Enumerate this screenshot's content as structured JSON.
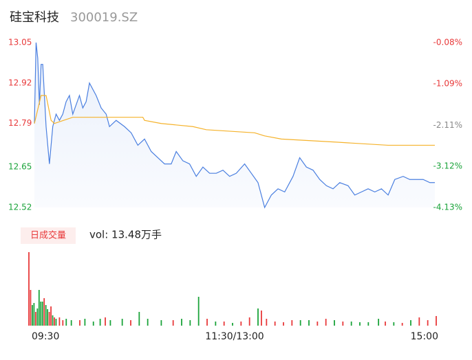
{
  "header": {
    "name": "硅宝科技",
    "code": "300019.SZ"
  },
  "volume_badge": "日成交量",
  "volume_text": "vol: 13.48万手",
  "chart_data": [
    {
      "type": "line",
      "xlim": [
        0,
        240
      ],
      "xticks": [
        {
          "value": 0,
          "label": "09:30"
        },
        {
          "value": 120,
          "label": "11:30/13:00"
        },
        {
          "value": 240,
          "label": "15:00"
        }
      ],
      "ylim": [
        12.52,
        13.05
      ],
      "yticks": [
        13.05,
        12.92,
        12.79,
        12.65,
        12.52
      ],
      "ytick_colors": [
        "#e8393a",
        "#e8393a",
        "#e8393a",
        "#1aa33a",
        "#1aa33a"
      ],
      "y2lim": [
        -4.13,
        -0.08
      ],
      "y2ticks": [
        {
          "value": -0.08,
          "label": "-0.08%"
        },
        {
          "value": -1.09,
          "label": "-1.09%"
        },
        {
          "value": -2.11,
          "label": "-2.11%"
        },
        {
          "value": -3.12,
          "label": "-3.12%"
        },
        {
          "value": -4.13,
          "label": "-4.13%"
        }
      ],
      "y2tick_colors": [
        "#e8393a",
        "#e8393a",
        "#888888",
        "#1aa33a",
        "#1aa33a"
      ],
      "series": [
        {
          "color": "#4a7fe0",
          "x": [
            0,
            1,
            2,
            3,
            4,
            5,
            7,
            9,
            11,
            13,
            15,
            17,
            19,
            21,
            23,
            25,
            27,
            29,
            31,
            33,
            37,
            40,
            43,
            45,
            49,
            54,
            58,
            62,
            66,
            70,
            74,
            78,
            82,
            85,
            89,
            93,
            97,
            101,
            105,
            109,
            113,
            117,
            121,
            126,
            130,
            134,
            138,
            142,
            146,
            150,
            155,
            159,
            163,
            167,
            171,
            175,
            179,
            183,
            188,
            192,
            196,
            200,
            204,
            208,
            212,
            216,
            221,
            225,
            229,
            233,
            237,
            240
          ],
          "values": [
            12.79,
            13.05,
            13.0,
            12.85,
            12.98,
            12.98,
            12.78,
            12.66,
            12.78,
            12.82,
            12.8,
            12.82,
            12.86,
            12.88,
            12.82,
            12.85,
            12.88,
            12.84,
            12.86,
            12.92,
            12.88,
            12.84,
            12.82,
            12.78,
            12.8,
            12.78,
            12.76,
            12.72,
            12.74,
            12.7,
            12.68,
            12.66,
            12.66,
            12.7,
            12.67,
            12.66,
            12.62,
            12.65,
            12.63,
            12.63,
            12.64,
            12.62,
            12.63,
            12.66,
            12.63,
            12.6,
            12.52,
            12.56,
            12.58,
            12.57,
            12.62,
            12.68,
            12.65,
            12.64,
            12.61,
            12.59,
            12.58,
            12.6,
            12.59,
            12.56,
            12.57,
            12.58,
            12.57,
            12.58,
            12.56,
            12.61,
            12.62,
            12.61,
            12.61,
            12.61,
            12.6,
            12.6
          ]
        },
        {
          "color": "#f5b22a",
          "x": [
            0,
            4,
            7,
            10,
            12,
            23,
            65,
            66,
            76,
            95,
            103,
            132,
            138,
            148,
            181,
            212,
            240
          ],
          "values": [
            12.79,
            12.88,
            12.88,
            12.8,
            12.79,
            12.81,
            12.81,
            12.8,
            12.79,
            12.78,
            12.77,
            12.76,
            12.75,
            12.74,
            12.73,
            12.72,
            12.72
          ]
        }
      ]
    },
    {
      "type": "bar",
      "xlim": [
        0,
        240
      ],
      "ylim": [
        0,
        11000
      ],
      "x": [
        0,
        1,
        2,
        3,
        4,
        5,
        6,
        7,
        8,
        9,
        10,
        11,
        12,
        13,
        14,
        15,
        16,
        18,
        20,
        22,
        25,
        30,
        33,
        38,
        42,
        45,
        48,
        55,
        60,
        65,
        70,
        78,
        85,
        90,
        95,
        100,
        105,
        110,
        115,
        120,
        125,
        130,
        135,
        137,
        140,
        145,
        150,
        155,
        160,
        165,
        170,
        175,
        180,
        185,
        190,
        195,
        200,
        206,
        210,
        215,
        220,
        225,
        230,
        235,
        240
      ],
      "values": [
        10700,
        5200,
        3000,
        3300,
        2000,
        2500,
        5200,
        3500,
        3500,
        4000,
        3000,
        2400,
        2000,
        2800,
        1500,
        1200,
        1000,
        1200,
        800,
        1000,
        800,
        800,
        1000,
        600,
        1000,
        1200,
        800,
        1000,
        800,
        2000,
        1000,
        800,
        800,
        1000,
        800,
        4200,
        1000,
        600,
        600,
        400,
        600,
        1200,
        2500,
        2200,
        1000,
        600,
        500,
        800,
        800,
        800,
        600,
        1000,
        800,
        600,
        600,
        500,
        500,
        1000,
        600,
        500,
        400,
        800,
        1200,
        800,
        1400
      ],
      "colors": [
        "#e8393a",
        "#e8393a",
        "#1aa33a",
        "#1aa33a",
        "#e8393a",
        "#1aa33a",
        "#1aa33a",
        "#1aa33a",
        "#1aa33a",
        "#e8393a",
        "#1aa33a",
        "#1aa33a",
        "#e8393a",
        "#e8393a",
        "#1aa33a",
        "#e8393a",
        "#1aa33a",
        "#e8393a",
        "#e8393a",
        "#1aa33a",
        "#1aa33a",
        "#e8393a",
        "#1aa33a",
        "#1aa33a",
        "#1aa33a",
        "#e8393a",
        "#1aa33a",
        "#1aa33a",
        "#e8393a",
        "#1aa33a",
        "#1aa33a",
        "#1aa33a",
        "#e8393a",
        "#1aa33a",
        "#1aa33a",
        "#1aa33a",
        "#e8393a",
        "#1aa33a",
        "#e8393a",
        "#1aa33a",
        "#e8393a",
        "#e8393a",
        "#1aa33a",
        "#e8393a",
        "#e8393a",
        "#e8393a",
        "#e8393a",
        "#e8393a",
        "#1aa33a",
        "#1aa33a",
        "#e8393a",
        "#e8393a",
        "#1aa33a",
        "#e8393a",
        "#1aa33a",
        "#1aa33a",
        "#1aa33a",
        "#1aa33a",
        "#e8393a",
        "#1aa33a",
        "#e8393a",
        "#1aa33a",
        "#e8393a",
        "#e8393a",
        "#e8393a"
      ]
    }
  ]
}
